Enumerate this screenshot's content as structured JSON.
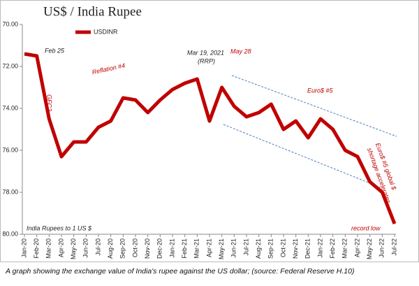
{
  "chart_data": {
    "type": "line",
    "title": "US$ / India Rupee",
    "categories": [
      "Jan-20",
      "Feb-20",
      "Mar-20",
      "Apr-20",
      "May-20",
      "Jun-20",
      "Jul-20",
      "Aug-20",
      "Sep-20",
      "Oct-20",
      "Nov-20",
      "Dec-20",
      "Jan-21",
      "Feb-21",
      "Mar-21",
      "Apr-21",
      "May-21",
      "Jun-21",
      "Jul-21",
      "Aug-21",
      "Sep-21",
      "Oct-21",
      "Nov-21",
      "Dec-21",
      "Jan-22",
      "Feb-22",
      "Mar-22",
      "Apr-22",
      "May-22",
      "Jun-22",
      "Jul-22"
    ],
    "series": [
      {
        "name": "USDINR",
        "color": "#c00000",
        "values": [
          71.4,
          71.5,
          74.5,
          76.3,
          75.6,
          75.6,
          74.9,
          74.6,
          73.5,
          73.6,
          74.2,
          73.6,
          73.1,
          72.8,
          72.6,
          74.6,
          73.0,
          73.9,
          74.4,
          74.2,
          73.8,
          75.0,
          74.6,
          75.4,
          74.5,
          75.0,
          76.0,
          76.3,
          77.5,
          78.0,
          79.5
        ]
      }
    ],
    "ylim": [
      70,
      80
    ],
    "y_inverted": true,
    "yticks": [
      {
        "value": 70,
        "label": "70.00"
      },
      {
        "value": 72,
        "label": "72.00"
      },
      {
        "value": 74,
        "label": "74.00"
      },
      {
        "value": 76,
        "label": "76.00"
      },
      {
        "value": 78,
        "label": "78.00"
      },
      {
        "value": 80,
        "label": "80.00"
      }
    ],
    "grid": false,
    "annotations": [
      "Feb 25",
      "GFC2",
      "Reflation #4",
      "Mar 19, 2021",
      "(RRP)",
      "May 28",
      "Euro$ #5",
      "Euro$ #5 global $",
      "shortage accelerates",
      "record low",
      "India Rupees to 1 US $"
    ],
    "caption": "A graph showing the exchange value of India's rupee against the US dollar; (source: Federal Reserve H.10)"
  }
}
